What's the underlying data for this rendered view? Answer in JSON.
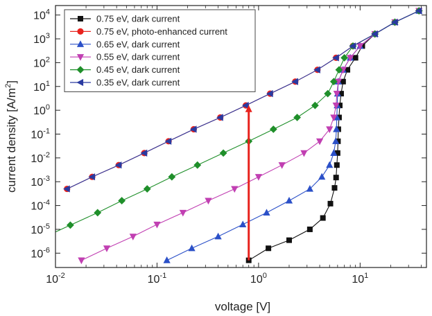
{
  "chart_data": {
    "type": "scatter",
    "xlabel": "voltage [V]",
    "ylabel_main": "current density [A/m",
    "ylabel_sup": "2",
    "ylabel_end": "]",
    "x_scale": "log",
    "y_scale": "log",
    "xlim": [
      0.01,
      45
    ],
    "ylim": [
      2.5e-07,
      25000
    ],
    "x_ticks": [
      {
        "value": 0.01,
        "base": "10",
        "exp": "-2"
      },
      {
        "value": 0.1,
        "base": "10",
        "exp": "-1"
      },
      {
        "value": 1,
        "base": "10",
        "exp": "0"
      },
      {
        "value": 10,
        "base": "10",
        "exp": "1"
      }
    ],
    "y_ticks": [
      {
        "value": 1e-06,
        "base": "10",
        "exp": "-6"
      },
      {
        "value": 1e-05,
        "base": "10",
        "exp": "-5"
      },
      {
        "value": 0.0001,
        "base": "10",
        "exp": "-4"
      },
      {
        "value": 0.001,
        "base": "10",
        "exp": "-3"
      },
      {
        "value": 0.01,
        "base": "10",
        "exp": "-2"
      },
      {
        "value": 0.1,
        "base": "10",
        "exp": "-1"
      },
      {
        "value": 1,
        "base": "10",
        "exp": "0"
      },
      {
        "value": 10,
        "base": "10",
        "exp": "1"
      },
      {
        "value": 100,
        "base": "10",
        "exp": "2"
      },
      {
        "value": 1000,
        "base": "10",
        "exp": "3"
      },
      {
        "value": 10000,
        "base": "10",
        "exp": "4"
      }
    ],
    "grid": false,
    "legend_position": "top-left",
    "arrow": {
      "x": 0.8,
      "y_from": 5e-07,
      "y_to": 2.0,
      "color": "#e8231e"
    },
    "series": [
      {
        "name": "0.75 eV, dark current",
        "color": "#111111",
        "marker": "square",
        "points": [
          [
            0.8,
            5e-07
          ],
          [
            1.25,
            1.6e-06
          ],
          [
            2.0,
            3.5e-06
          ],
          [
            3.2,
            1e-05
          ],
          [
            4.3,
            3e-05
          ],
          [
            5.1,
            0.00012
          ],
          [
            5.6,
            0.00055
          ],
          [
            5.8,
            0.0015
          ],
          [
            5.9,
            0.005
          ],
          [
            6.0,
            0.016
          ],
          [
            6.05,
            0.05
          ],
          [
            6.1,
            0.16
          ],
          [
            6.2,
            0.5
          ],
          [
            6.3,
            1.6
          ],
          [
            6.5,
            5
          ],
          [
            6.8,
            16
          ],
          [
            7.5,
            50
          ],
          [
            9.0,
            160
          ],
          [
            10.5,
            500
          ],
          [
            14,
            1600
          ],
          [
            22,
            5000
          ],
          [
            38,
            15000
          ]
        ]
      },
      {
        "name": "0.75 eV, photo-enhanced current",
        "color": "#e8231e",
        "marker": "circle",
        "points": [
          [
            0.013,
            0.0005
          ],
          [
            0.023,
            0.0016
          ],
          [
            0.042,
            0.005
          ],
          [
            0.075,
            0.016
          ],
          [
            0.13,
            0.05
          ],
          [
            0.23,
            0.16
          ],
          [
            0.42,
            0.5
          ],
          [
            0.75,
            1.6
          ],
          [
            1.3,
            5
          ],
          [
            2.3,
            16
          ],
          [
            3.8,
            50
          ],
          [
            5.8,
            160
          ],
          [
            8.5,
            500
          ],
          [
            14,
            1600
          ],
          [
            22,
            5000
          ],
          [
            38,
            15000
          ]
        ]
      },
      {
        "name": "0.65 eV, dark current",
        "color": "#2b50c8",
        "marker": "triangle-up",
        "points": [
          [
            0.125,
            5e-07
          ],
          [
            0.22,
            1.6e-06
          ],
          [
            0.4,
            5e-06
          ],
          [
            0.7,
            1.6e-05
          ],
          [
            1.2,
            5e-05
          ],
          [
            2.0,
            0.00016
          ],
          [
            3.2,
            0.0005
          ],
          [
            4.2,
            0.0016
          ],
          [
            5.0,
            0.005
          ],
          [
            5.5,
            0.016
          ],
          [
            5.75,
            0.05
          ],
          [
            5.85,
            0.16
          ],
          [
            5.9,
            0.5
          ],
          [
            5.95,
            1.6
          ],
          [
            6.0,
            5
          ],
          [
            6.1,
            16
          ],
          [
            6.8,
            50
          ],
          [
            8.0,
            160
          ],
          [
            10.0,
            500
          ],
          [
            14,
            1600
          ],
          [
            22,
            5000
          ],
          [
            38,
            15000
          ]
        ]
      },
      {
        "name": "0.55 eV, dark current",
        "color": "#c13fb2",
        "marker": "triangle-down",
        "points": [
          [
            0.018,
            5e-07
          ],
          [
            0.032,
            1.6e-06
          ],
          [
            0.058,
            5e-06
          ],
          [
            0.1,
            1.6e-05
          ],
          [
            0.18,
            5e-05
          ],
          [
            0.32,
            0.00016
          ],
          [
            0.58,
            0.0005
          ],
          [
            1.0,
            0.0016
          ],
          [
            1.7,
            0.005
          ],
          [
            2.8,
            0.016
          ],
          [
            4.0,
            0.05
          ],
          [
            5.0,
            0.16
          ],
          [
            5.5,
            0.5
          ],
          [
            5.8,
            1.6
          ],
          [
            5.9,
            5
          ],
          [
            6.1,
            16
          ],
          [
            6.8,
            50
          ],
          [
            8.0,
            160
          ],
          [
            10.0,
            500
          ],
          [
            14,
            1600
          ],
          [
            22,
            5000
          ],
          [
            38,
            15000
          ]
        ]
      },
      {
        "name": "0.45 eV, dark current",
        "color": "#1f8f2a",
        "marker": "diamond",
        "points": [
          [
            0.008,
            5e-06
          ],
          [
            0.014,
            1.5e-05
          ],
          [
            0.026,
            5e-05
          ],
          [
            0.045,
            0.00016
          ],
          [
            0.08,
            0.0005
          ],
          [
            0.14,
            0.0016
          ],
          [
            0.25,
            0.005
          ],
          [
            0.45,
            0.016
          ],
          [
            0.8,
            0.05
          ],
          [
            1.4,
            0.16
          ],
          [
            2.4,
            0.5
          ],
          [
            3.6,
            1.6
          ],
          [
            4.8,
            5
          ],
          [
            5.5,
            16
          ],
          [
            6.2,
            50
          ],
          [
            7.0,
            160
          ],
          [
            8.5,
            500
          ],
          [
            14,
            1600
          ],
          [
            22,
            5000
          ],
          [
            38,
            15000
          ]
        ]
      },
      {
        "name": "0.35 eV, dark current",
        "color": "#2a3aa0",
        "marker": "triangle-left",
        "points": [
          [
            0.013,
            0.0005
          ],
          [
            0.023,
            0.0016
          ],
          [
            0.042,
            0.005
          ],
          [
            0.075,
            0.016
          ],
          [
            0.13,
            0.05
          ],
          [
            0.23,
            0.16
          ],
          [
            0.42,
            0.5
          ],
          [
            0.75,
            1.6
          ],
          [
            1.3,
            5
          ],
          [
            2.3,
            16
          ],
          [
            3.8,
            50
          ],
          [
            5.8,
            160
          ],
          [
            8.5,
            500
          ],
          [
            14,
            1600
          ],
          [
            22,
            5000
          ],
          [
            38,
            15000
          ]
        ]
      }
    ]
  }
}
